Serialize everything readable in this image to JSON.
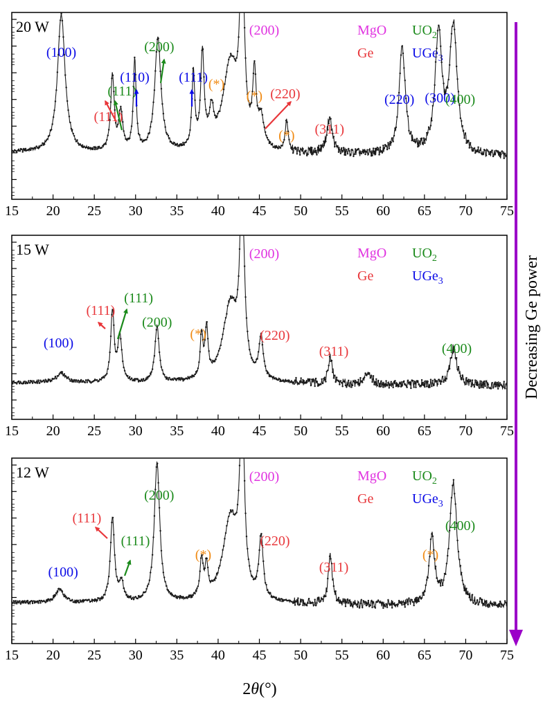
{
  "colors": {
    "MgO": "#e033e0",
    "Ge": "#e8363a",
    "UO2": "#1b8a1b",
    "UGe3": "#0a0ae6",
    "star": "#f08a13",
    "trace": "#1a1a1a",
    "arrow": "#9b00c8"
  },
  "arrow_label": "Decreasing Ge power",
  "xlabel": "2θ(°)",
  "chart_data": [
    {
      "type": "line",
      "title": "20 W",
      "xlim": [
        15,
        75
      ],
      "xticks": [
        15,
        20,
        25,
        30,
        35,
        40,
        45,
        50,
        55,
        60,
        65,
        70,
        75
      ],
      "y_scale": "log",
      "y_tick_labels": "none",
      "legend": [
        "MgO",
        "UO2",
        "Ge",
        "UGe3"
      ],
      "series": [
        {
          "baseline": 0.25,
          "peaks": [
            [
              21.0,
              0.74,
              0.55
            ],
            [
              27.2,
              0.4,
              0.25
            ],
            [
              28.2,
              0.2,
              0.3
            ],
            [
              29.9,
              0.49,
              0.2
            ],
            [
              32.7,
              0.61,
              0.45
            ],
            [
              37.0,
              0.4,
              0.2
            ],
            [
              38.1,
              0.5,
              0.25
            ],
            [
              39.2,
              0.17,
              0.3
            ],
            [
              41.5,
              0.47,
              1.1
            ],
            [
              42.9,
              1.04,
              0.3
            ],
            [
              44.4,
              0.37,
              0.25
            ],
            [
              45.2,
              0.15,
              0.4
            ],
            [
              48.3,
              0.17,
              0.2
            ],
            [
              53.5,
              0.19,
              0.4
            ],
            [
              62.3,
              0.58,
              0.45
            ],
            [
              66.7,
              0.63,
              0.5
            ],
            [
              68.5,
              0.68,
              0.55
            ]
          ]
        }
      ],
      "annotations": [
        {
          "text": "(100)",
          "phase": "UGe3",
          "x": 21.0
        },
        {
          "text": "(111)",
          "phase": "Ge",
          "x": 27.2
        },
        {
          "text": "(111)",
          "phase": "UO2",
          "x": 28.2
        },
        {
          "text": "(110)",
          "phase": "UGe3",
          "x": 29.9
        },
        {
          "text": "(200)",
          "phase": "UO2",
          "x": 32.7
        },
        {
          "text": "(111)",
          "phase": "UGe3",
          "x": 37.0
        },
        {
          "text": "(*)",
          "phase": "star",
          "x": 39.8
        },
        {
          "text": "(200)",
          "phase": "MgO",
          "x": 42.9
        },
        {
          "text": "(*)",
          "phase": "star",
          "x": 44.4
        },
        {
          "text": "(220)",
          "phase": "Ge",
          "x": 45.2
        },
        {
          "text": "(*)",
          "phase": "star",
          "x": 48.3
        },
        {
          "text": "(311)",
          "phase": "Ge",
          "x": 53.5
        },
        {
          "text": "(220)",
          "phase": "UGe3",
          "x": 62.3
        },
        {
          "text": "(300)",
          "phase": "UGe3",
          "x": 66.7
        },
        {
          "text": "(400)",
          "phase": "UO2",
          "x": 68.5
        }
      ]
    },
    {
      "type": "line",
      "title": "15 W",
      "xlim": [
        15,
        75
      ],
      "xticks": [
        15,
        20,
        25,
        30,
        35,
        40,
        45,
        50,
        55,
        60,
        65,
        70,
        75
      ],
      "y_scale": "log",
      "y_tick_labels": "none",
      "legend": [
        "MgO",
        "UO2",
        "Ge",
        "UGe3"
      ],
      "series": [
        {
          "baseline": 0.2,
          "peaks": [
            [
              21.0,
              0.05,
              0.7
            ],
            [
              27.2,
              0.38,
              0.25
            ],
            [
              28.1,
              0.24,
              0.3
            ],
            [
              32.6,
              0.31,
              0.3
            ],
            [
              38.0,
              0.23,
              0.2
            ],
            [
              38.6,
              0.26,
              0.2
            ],
            [
              41.5,
              0.42,
              1.1
            ],
            [
              42.9,
              1.02,
              0.3
            ],
            [
              45.2,
              0.22,
              0.3
            ],
            [
              53.6,
              0.14,
              0.3
            ],
            [
              58.2,
              0.07,
              0.4
            ],
            [
              68.5,
              0.2,
              0.5
            ]
          ]
        }
      ],
      "annotations": [
        {
          "text": "(100)",
          "phase": "UGe3",
          "x": 21.0
        },
        {
          "text": "(111)",
          "phase": "Ge",
          "x": 27.2
        },
        {
          "text": "(111)",
          "phase": "UO2",
          "x": 28.1
        },
        {
          "text": "(200)",
          "phase": "UO2",
          "x": 32.6
        },
        {
          "text": "(*)",
          "phase": "star",
          "x": 38.0
        },
        {
          "text": "(200)",
          "phase": "MgO",
          "x": 42.9
        },
        {
          "text": "(220)",
          "phase": "Ge",
          "x": 45.2
        },
        {
          "text": "(311)",
          "phase": "Ge",
          "x": 53.6
        },
        {
          "text": "(400)",
          "phase": "UO2",
          "x": 68.5
        }
      ]
    },
    {
      "type": "line",
      "title": "12 W",
      "xlim": [
        15,
        75
      ],
      "xticks": [
        15,
        20,
        25,
        30,
        35,
        40,
        45,
        50,
        55,
        60,
        65,
        70,
        75
      ],
      "y_scale": "log",
      "y_tick_labels": "none",
      "legend": [
        "MgO",
        "UO2",
        "Ge",
        "UGe3"
      ],
      "series": [
        {
          "baseline": 0.22,
          "peaks": [
            [
              20.8,
              0.07,
              0.6
            ],
            [
              27.2,
              0.45,
              0.3
            ],
            [
              28.3,
              0.1,
              0.3
            ],
            [
              32.6,
              0.75,
              0.4
            ],
            [
              38.0,
              0.2,
              0.25
            ],
            [
              38.6,
              0.16,
              0.2
            ],
            [
              41.5,
              0.45,
              1.1
            ],
            [
              42.9,
              1.04,
              0.3
            ],
            [
              45.2,
              0.33,
              0.3
            ],
            [
              53.6,
              0.26,
              0.3
            ],
            [
              65.9,
              0.35,
              0.4
            ],
            [
              68.5,
              0.65,
              0.55
            ]
          ]
        }
      ],
      "annotations": [
        {
          "text": "(100)",
          "phase": "UGe3",
          "x": 20.8
        },
        {
          "text": "(111)",
          "phase": "Ge",
          "x": 27.2
        },
        {
          "text": "(111)",
          "phase": "UO2",
          "x": 28.3
        },
        {
          "text": "(200)",
          "phase": "UO2",
          "x": 32.6
        },
        {
          "text": "(*)",
          "phase": "star",
          "x": 38.2
        },
        {
          "text": "(200)",
          "phase": "MgO",
          "x": 42.9
        },
        {
          "text": "(220)",
          "phase": "Ge",
          "x": 45.2
        },
        {
          "text": "(311)",
          "phase": "Ge",
          "x": 53.6
        },
        {
          "text": "(*)",
          "phase": "star",
          "x": 65.9
        },
        {
          "text": "(400)",
          "phase": "UO2",
          "x": 68.5
        }
      ]
    }
  ]
}
